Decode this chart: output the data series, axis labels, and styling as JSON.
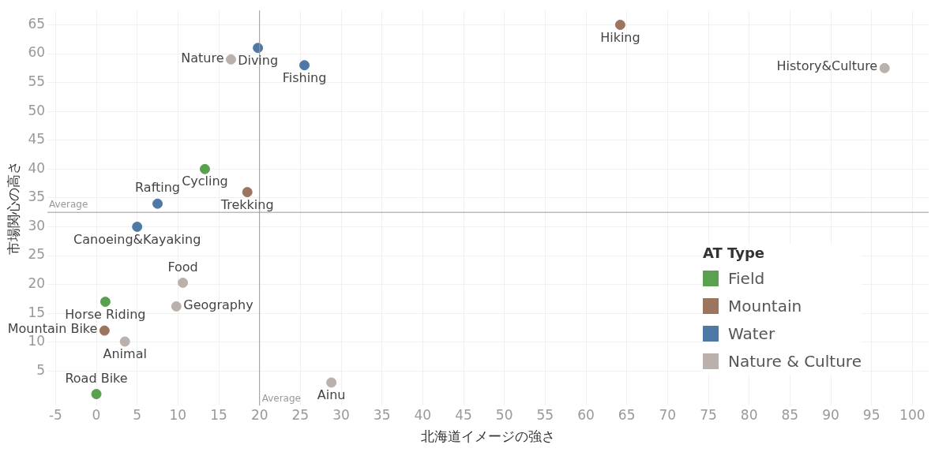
{
  "chart_data": {
    "type": "scatter",
    "xlabel": "北海道イメージの強さ",
    "ylabel": "市場関心の高さ",
    "legend_title": "AT Type",
    "legend": "right",
    "grid": true,
    "marker": "circle",
    "xlim": [
      -6,
      102
    ],
    "xticks": [
      -5,
      0,
      5,
      10,
      15,
      20,
      25,
      30,
      35,
      40,
      45,
      50,
      55,
      60,
      65,
      70,
      75,
      80,
      85,
      90,
      95,
      100
    ],
    "ylim": [
      -1,
      67.5
    ],
    "yticks": [
      5,
      10,
      15,
      20,
      25,
      30,
      35,
      40,
      45,
      50,
      55,
      60,
      65
    ],
    "series": [
      {
        "name": "Field",
        "color": "#59a14f",
        "x": [
          13.3,
          1.1,
          0
        ],
        "values": [
          40,
          17,
          1
        ]
      },
      {
        "name": "Mountain",
        "color": "#9c755f",
        "x": [
          64.2,
          18.5,
          1
        ],
        "values": [
          65,
          36,
          12
        ]
      },
      {
        "name": "Water",
        "color": "#4e79a7",
        "x": [
          19.8,
          25.5,
          7.5,
          5
        ],
        "values": [
          61,
          58,
          34,
          30
        ]
      },
      {
        "name": "Nature & Culture",
        "color": "#bab0ac",
        "x": [
          16.5,
          96.6,
          10.6,
          9.8,
          3.5,
          28.8
        ],
        "values": [
          59,
          57.5,
          20.3,
          16.2,
          10.1,
          3
        ]
      }
    ],
    "ref_lines": [
      {
        "axis": "x",
        "value": 20,
        "label": "Average",
        "color": "#999999"
      },
      {
        "axis": "y",
        "value": 32.5,
        "label": "Average",
        "color": "#999999"
      }
    ],
    "annotations": [
      {
        "text": "Cycling",
        "x": 13.3,
        "y": 40
      },
      {
        "text": "Horse Riding",
        "x": 1.1,
        "y": 17
      },
      {
        "text": "Road Bike",
        "x": 0,
        "y": 1
      },
      {
        "text": "Hiking",
        "x": 64.2,
        "y": 65
      },
      {
        "text": "Trekking",
        "x": 18.5,
        "y": 36
      },
      {
        "text": "Mountain Bike",
        "x": 1,
        "y": 12
      },
      {
        "text": "Diving",
        "x": 19.8,
        "y": 61
      },
      {
        "text": "Fishing",
        "x": 25.5,
        "y": 58
      },
      {
        "text": "Rafting",
        "x": 7.5,
        "y": 34
      },
      {
        "text": "Canoeing&Kayaking",
        "x": 5,
        "y": 30
      },
      {
        "text": "Nature",
        "x": 16.5,
        "y": 59
      },
      {
        "text": "History&Culture",
        "x": 96.6,
        "y": 57.5
      },
      {
        "text": "Food",
        "x": 10.6,
        "y": 20.3
      },
      {
        "text": "Geography",
        "x": 9.8,
        "y": 16.2
      },
      {
        "text": "Animal",
        "x": 3.5,
        "y": 10.1
      },
      {
        "text": "Ainu",
        "x": 28.8,
        "y": 3
      }
    ]
  }
}
